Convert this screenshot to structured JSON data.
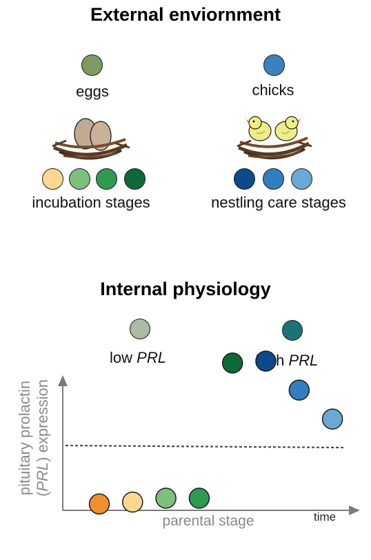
{
  "external": {
    "title": "External enviornment",
    "eggs_label": "eggs",
    "chicks_label": "chicks",
    "incubation_label": "incubation stages",
    "nestling_label": "nestling care stages",
    "eggs_color": "#7e9a62",
    "chicks_color": "#3a82bd",
    "incubation_colors": [
      "#fdd68f",
      "#7cc07a",
      "#2f9a52",
      "#0c6a36"
    ],
    "nestling_colors": [
      "#0c4a8c",
      "#2f7fbe",
      "#6aa8d6"
    ]
  },
  "internal": {
    "title": "Internal physiology",
    "low_prefix": "low ",
    "low_gene": "PRL",
    "high_prefix": "high ",
    "high_gene": "PRL",
    "low_color": "#adbba5",
    "high_color": "#1a7474"
  },
  "chart_data": {
    "type": "scatter",
    "ylabel_line1": "pituitary prolactin",
    "ylabel_line2_open": "(",
    "ylabel_gene": "PRL",
    "ylabel_line2_rest": ") expression",
    "xlabel": "parental stage",
    "x_arrow_label": "time",
    "threshold_line": "dashed",
    "points": [
      {
        "stage": 1,
        "level": 0.14,
        "color": "#f0902a"
      },
      {
        "stage": 2,
        "level": 0.15,
        "color": "#fdd68f"
      },
      {
        "stage": 3,
        "level": 0.17,
        "color": "#7cc07a"
      },
      {
        "stage": 4,
        "level": 0.17,
        "color": "#2f9a52"
      },
      {
        "stage": 5,
        "level": 0.87,
        "color": "#0c6a36"
      },
      {
        "stage": 6,
        "level": 0.88,
        "color": "#0c4a8c"
      },
      {
        "stage": 7,
        "level": 0.73,
        "color": "#2f7fbe"
      },
      {
        "stage": 8,
        "level": 0.58,
        "color": "#6aa8d6"
      }
    ]
  }
}
